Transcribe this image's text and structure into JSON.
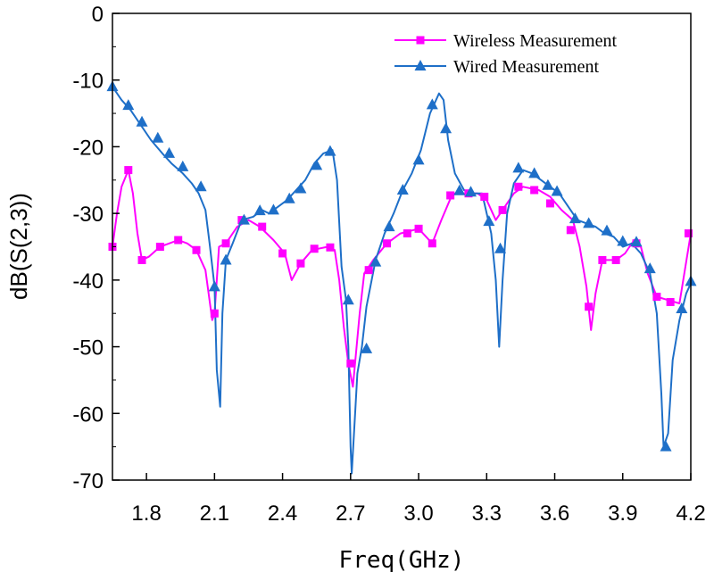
{
  "chart_data": {
    "type": "line",
    "title": "",
    "xlabel": "Freq(GHz)",
    "ylabel": "dB(S(2,3))",
    "xlim": [
      1.65,
      4.2
    ],
    "ylim": [
      -70,
      0
    ],
    "xticks": [
      1.8,
      2.1,
      2.4,
      2.7,
      3.0,
      3.3,
      3.6,
      3.9,
      4.2
    ],
    "xtick_labels": [
      "1.8",
      "2.1",
      "2.4",
      "2.7",
      "3.0",
      "3.3",
      "3.6",
      "3.9",
      "4.2"
    ],
    "yticks": [
      0,
      -10,
      -20,
      -30,
      -40,
      -50,
      -60,
      -70
    ],
    "ytick_labels": [
      "0",
      "-10",
      "-20",
      "-30",
      "-40",
      "-50",
      "-60",
      "-70"
    ],
    "grid": false,
    "legend_position": "top-right",
    "series": [
      {
        "name": "Wireless Measurement",
        "color": "#ff00ff",
        "marker": "square",
        "line": [
          [
            1.65,
            -35
          ],
          [
            1.67,
            -30
          ],
          [
            1.69,
            -26
          ],
          [
            1.72,
            -23.5
          ],
          [
            1.74,
            -27
          ],
          [
            1.76,
            -33
          ],
          [
            1.78,
            -37
          ],
          [
            1.81,
            -36.5
          ],
          [
            1.86,
            -35
          ],
          [
            1.9,
            -34.5
          ],
          [
            1.94,
            -34
          ],
          [
            1.98,
            -34.5
          ],
          [
            2.02,
            -35.5
          ],
          [
            2.06,
            -38.5
          ],
          [
            2.09,
            -46
          ],
          [
            2.1,
            -45
          ],
          [
            2.12,
            -35
          ],
          [
            2.15,
            -34.5
          ],
          [
            2.2,
            -32
          ],
          [
            2.25,
            -31
          ],
          [
            2.3,
            -32
          ],
          [
            2.36,
            -34
          ],
          [
            2.41,
            -36
          ],
          [
            2.44,
            -40
          ],
          [
            2.48,
            -37.5
          ],
          [
            2.53,
            -35.5
          ],
          [
            2.6,
            -35
          ],
          [
            2.63,
            -35.5
          ],
          [
            2.65,
            -40
          ],
          [
            2.67,
            -47
          ],
          [
            2.69,
            -52.5
          ],
          [
            2.71,
            -56
          ],
          [
            2.74,
            -45
          ],
          [
            2.76,
            -39
          ],
          [
            2.8,
            -37
          ],
          [
            2.86,
            -34.5
          ],
          [
            2.92,
            -33
          ],
          [
            3.0,
            -32.3
          ],
          [
            3.06,
            -34.5
          ],
          [
            3.1,
            -31
          ],
          [
            3.15,
            -27
          ],
          [
            3.21,
            -27
          ],
          [
            3.26,
            -27
          ],
          [
            3.3,
            -28
          ],
          [
            3.34,
            -31
          ],
          [
            3.38,
            -29
          ],
          [
            3.42,
            -27
          ],
          [
            3.46,
            -26
          ],
          [
            3.53,
            -26.5
          ],
          [
            3.58,
            -27.5
          ],
          [
            3.63,
            -29.5
          ],
          [
            3.68,
            -31
          ],
          [
            3.71,
            -35
          ],
          [
            3.74,
            -41
          ],
          [
            3.76,
            -47.5
          ],
          [
            3.78,
            -42
          ],
          [
            3.81,
            -37
          ],
          [
            3.87,
            -37
          ],
          [
            3.91,
            -36
          ],
          [
            3.95,
            -34
          ],
          [
            3.98,
            -35
          ],
          [
            4.01,
            -39
          ],
          [
            4.05,
            -42.5
          ],
          [
            4.1,
            -43
          ],
          [
            4.15,
            -43.5
          ],
          [
            4.2,
            -33
          ]
        ],
        "markers": [
          [
            1.65,
            -35
          ],
          [
            1.72,
            -23.5
          ],
          [
            1.78,
            -37
          ],
          [
            1.86,
            -35
          ],
          [
            1.94,
            -34
          ],
          [
            2.02,
            -35.5
          ],
          [
            2.1,
            -45
          ],
          [
            2.15,
            -34.5
          ],
          [
            2.22,
            -31
          ],
          [
            2.31,
            -32
          ],
          [
            2.4,
            -36
          ],
          [
            2.48,
            -37.5
          ],
          [
            2.54,
            -35.3
          ],
          [
            2.61,
            -35.1
          ],
          [
            2.7,
            -52.5
          ],
          [
            2.78,
            -38.5
          ],
          [
            2.86,
            -34.5
          ],
          [
            2.95,
            -33
          ],
          [
            3.0,
            -32.3
          ],
          [
            3.06,
            -34.5
          ],
          [
            3.14,
            -27.3
          ],
          [
            3.22,
            -27
          ],
          [
            3.29,
            -27.5
          ],
          [
            3.37,
            -29.5
          ],
          [
            3.44,
            -26
          ],
          [
            3.51,
            -26.5
          ],
          [
            3.58,
            -28.5
          ],
          [
            3.67,
            -32.5
          ],
          [
            3.75,
            -44
          ],
          [
            3.81,
            -37
          ],
          [
            3.87,
            -37
          ],
          [
            3.96,
            -34.5
          ],
          [
            4.05,
            -42.5
          ],
          [
            4.11,
            -43.3
          ],
          [
            4.19,
            -33
          ]
        ]
      },
      {
        "name": "Wired Measurement",
        "color": "#1e6fc8",
        "marker": "triangle",
        "line": [
          [
            1.65,
            -11
          ],
          [
            1.69,
            -13
          ],
          [
            1.73,
            -14.5
          ],
          [
            1.77,
            -16.5
          ],
          [
            1.82,
            -19
          ],
          [
            1.87,
            -21
          ],
          [
            1.91,
            -22.5
          ],
          [
            1.96,
            -24
          ],
          [
            2.0,
            -25.5
          ],
          [
            2.03,
            -27
          ],
          [
            2.06,
            -29.5
          ],
          [
            2.08,
            -35
          ],
          [
            2.1,
            -41
          ],
          [
            2.11,
            -53.5
          ],
          [
            2.125,
            -59
          ],
          [
            2.135,
            -45
          ],
          [
            2.15,
            -37
          ],
          [
            2.18,
            -34.5
          ],
          [
            2.22,
            -31
          ],
          [
            2.27,
            -30.5
          ],
          [
            2.31,
            -29.5
          ],
          [
            2.34,
            -30
          ],
          [
            2.38,
            -29
          ],
          [
            2.42,
            -28
          ],
          [
            2.46,
            -26.5
          ],
          [
            2.5,
            -25
          ],
          [
            2.54,
            -22.5
          ],
          [
            2.58,
            -21
          ],
          [
            2.62,
            -20.5
          ],
          [
            2.64,
            -25
          ],
          [
            2.66,
            -38
          ],
          [
            2.68,
            -43
          ],
          [
            2.69,
            -50
          ],
          [
            2.7,
            -65
          ],
          [
            2.705,
            -69
          ],
          [
            2.72,
            -60
          ],
          [
            2.73,
            -54
          ],
          [
            2.75,
            -50
          ],
          [
            2.77,
            -44
          ],
          [
            2.81,
            -37
          ],
          [
            2.85,
            -33
          ],
          [
            2.89,
            -30
          ],
          [
            2.93,
            -26.5
          ],
          [
            2.97,
            -24
          ],
          [
            3.01,
            -20.5
          ],
          [
            3.05,
            -15
          ],
          [
            3.09,
            -12
          ],
          [
            3.11,
            -13
          ],
          [
            3.13,
            -19
          ],
          [
            3.16,
            -24
          ],
          [
            3.2,
            -26.5
          ],
          [
            3.24,
            -27
          ],
          [
            3.28,
            -27
          ],
          [
            3.3,
            -30
          ],
          [
            3.32,
            -33
          ],
          [
            3.34,
            -40
          ],
          [
            3.355,
            -50
          ],
          [
            3.37,
            -40
          ],
          [
            3.39,
            -30
          ],
          [
            3.42,
            -25.5
          ],
          [
            3.46,
            -23.5
          ],
          [
            3.5,
            -24
          ],
          [
            3.54,
            -25
          ],
          [
            3.58,
            -26
          ],
          [
            3.62,
            -27
          ],
          [
            3.66,
            -29
          ],
          [
            3.7,
            -31
          ],
          [
            3.74,
            -31.5
          ],
          [
            3.78,
            -32
          ],
          [
            3.82,
            -33
          ],
          [
            3.86,
            -33.5
          ],
          [
            3.9,
            -35
          ],
          [
            3.94,
            -34.5
          ],
          [
            3.98,
            -36
          ],
          [
            4.02,
            -39
          ],
          [
            4.05,
            -45
          ],
          [
            4.07,
            -57
          ],
          [
            4.08,
            -65
          ],
          [
            4.1,
            -63
          ],
          [
            4.12,
            -52
          ],
          [
            4.15,
            -46
          ],
          [
            4.18,
            -42
          ],
          [
            4.2,
            -40.5
          ]
        ],
        "markers": [
          [
            1.65,
            -11
          ],
          [
            1.72,
            -13.8
          ],
          [
            1.78,
            -16.3
          ],
          [
            1.85,
            -18.7
          ],
          [
            1.9,
            -21
          ],
          [
            1.96,
            -23
          ],
          [
            2.04,
            -26
          ],
          [
            2.1,
            -41
          ],
          [
            2.15,
            -37
          ],
          [
            2.23,
            -31
          ],
          [
            2.3,
            -29.6
          ],
          [
            2.36,
            -29.5
          ],
          [
            2.43,
            -27.8
          ],
          [
            2.48,
            -26.3
          ],
          [
            2.55,
            -22.8
          ],
          [
            2.61,
            -20.7
          ],
          [
            2.69,
            -43
          ],
          [
            2.77,
            -50.3
          ],
          [
            2.81,
            -37.3
          ],
          [
            2.87,
            -32
          ],
          [
            2.93,
            -26.5
          ],
          [
            3.0,
            -22
          ],
          [
            3.06,
            -13.7
          ],
          [
            3.12,
            -17.3
          ],
          [
            3.18,
            -26.6
          ],
          [
            3.23,
            -26.8
          ],
          [
            3.31,
            -31.2
          ],
          [
            3.36,
            -35.3
          ],
          [
            3.44,
            -23.2
          ],
          [
            3.51,
            -24
          ],
          [
            3.57,
            -25.8
          ],
          [
            3.61,
            -26.7
          ],
          [
            3.69,
            -30.8
          ],
          [
            3.75,
            -31.5
          ],
          [
            3.83,
            -32.6
          ],
          [
            3.9,
            -34.2
          ],
          [
            3.96,
            -34.3
          ],
          [
            4.02,
            -38.3
          ],
          [
            4.09,
            -65
          ],
          [
            4.16,
            -44.3
          ],
          [
            4.2,
            -40.2
          ]
        ]
      }
    ]
  }
}
